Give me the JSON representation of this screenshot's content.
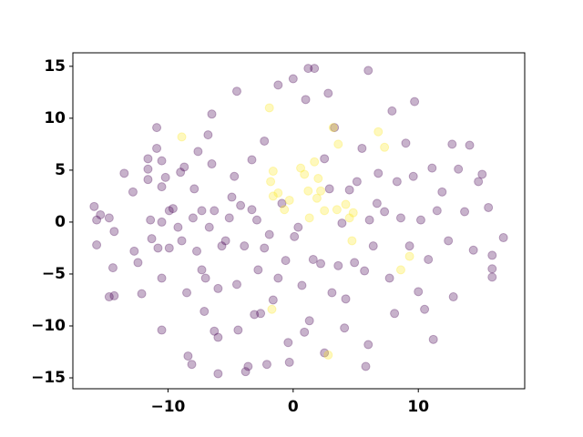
{
  "chart_data": {
    "type": "scatter",
    "alpha": 0.3,
    "xlim": [
      -17.6,
      18.5
    ],
    "ylim": [
      -16.05,
      16.3
    ],
    "xticks": [
      {
        "value": -10,
        "label": "−10"
      },
      0,
      10
    ],
    "yticks": [
      {
        "value": -15,
        "label": "−15"
      },
      {
        "value": -10,
        "label": "−10"
      },
      {
        "value": -5,
        "label": "−5"
      },
      0,
      5,
      10,
      15
    ],
    "series": [
      {
        "color": "#440154",
        "x": [
          -15.9,
          -15.4,
          -15.7,
          -14.7,
          -15.7,
          -14.3,
          -13.5,
          -14.4,
          -14.7,
          -14.3,
          -12.8,
          -12.7,
          -12.4,
          -12.1,
          -11.6,
          -11.6,
          -11.6,
          -11.4,
          -11.3,
          -10.9,
          -10.9,
          -10.8,
          -10.5,
          -10.5,
          -10.5,
          -10.5,
          -10.5,
          -10.2,
          -9.9,
          -9.9,
          -9.6,
          -9.2,
          -9.0,
          -8.9,
          -8.7,
          -8.5,
          -8.4,
          -8.1,
          -8.0,
          -7.9,
          -7.6,
          -7.7,
          -7.3,
          -7.3,
          -7.1,
          -6.8,
          -7.0,
          -6.7,
          -6.5,
          -6.5,
          -6.3,
          -6.3,
          -6.0,
          -6.0,
          -6.0,
          -5.7,
          -5.4,
          -5.1,
          -4.9,
          -4.7,
          -4.5,
          -4.5,
          -4.4,
          -4.2,
          -3.9,
          -3.8,
          -3.6,
          -3.3,
          -3.3,
          -3.1,
          -2.9,
          -2.8,
          -2.6,
          -2.3,
          -2.3,
          -2.1,
          -1.9,
          -1.6,
          -1.2,
          -1.2,
          -0.9,
          -0.6,
          -0.4,
          -0.3,
          0,
          0.1,
          0.4,
          0.7,
          0.9,
          1.0,
          1.2,
          1.3,
          1.6,
          1.7,
          2.2,
          2.5,
          2.5,
          2.8,
          2.9,
          3.1,
          3.3,
          3.6,
          3.9,
          4.1,
          4.2,
          4.5,
          4.9,
          5.1,
          5.5,
          5.7,
          5.8,
          6.0,
          6.1,
          6.4,
          6.7,
          6.8,
          7.3,
          7.7,
          7.9,
          8.1,
          8.3,
          8.6,
          9.0,
          9.3,
          9.6,
          9.7,
          10.0,
          10.2,
          10.5,
          10.8,
          11.1,
          11.2,
          11.5,
          11.9,
          12.4,
          12.7,
          12.8,
          13.2,
          13.7,
          14.1,
          14.4,
          14.8,
          15.1,
          15.6,
          15.9,
          15.9,
          16.8,
          15.9,
          6.0
        ],
        "y": [
          1.5,
          0.7,
          0.2,
          0.4,
          -2.2,
          -0.9,
          4.7,
          -4.4,
          -7.2,
          -7.1,
          2.9,
          -2.8,
          -3.9,
          -6.9,
          6.1,
          5.1,
          4.1,
          0.2,
          -1.6,
          9.1,
          7.1,
          -2.5,
          5.9,
          3.4,
          0,
          -5.4,
          -10.4,
          4.3,
          1.1,
          -2.5,
          1.3,
          -0.5,
          4.8,
          -1.8,
          5.3,
          -6.8,
          -12.9,
          -13.7,
          0.4,
          3.2,
          6.8,
          -2.8,
          1.1,
          -4.6,
          -8.6,
          8.4,
          -5.4,
          -0.5,
          5.6,
          10.4,
          1.1,
          -10.5,
          -14.6,
          -11.1,
          -6.4,
          -2.3,
          -1.8,
          0.4,
          2.4,
          4.4,
          12.6,
          -6.0,
          -10.4,
          1.6,
          -2.3,
          -14.4,
          -13.9,
          6.0,
          1.2,
          -8.9,
          0.2,
          -4.6,
          -8.8,
          7.8,
          -2.5,
          -13.7,
          -1.2,
          -7.5,
          13.2,
          -5.4,
          1.8,
          -3.7,
          -11.6,
          -13.5,
          13.8,
          -1.4,
          -0.5,
          -6.1,
          -10.6,
          11.8,
          14.8,
          -9.5,
          -3.6,
          14.8,
          -4.0,
          6.1,
          -12.6,
          12.4,
          3.2,
          -6.8,
          9.1,
          -4.2,
          -0.1,
          -10.2,
          -7.4,
          3.1,
          -3.9,
          3.9,
          7.1,
          -4.7,
          -13.9,
          -11.8,
          0.2,
          -2.3,
          1.8,
          4.7,
          1.0,
          -5.4,
          10.7,
          -8.8,
          3.9,
          0.4,
          7.6,
          -2.3,
          4.4,
          11.6,
          -6.7,
          0.2,
          -8.4,
          -3.6,
          5.2,
          -11.3,
          1.1,
          2.9,
          -1.8,
          7.5,
          -7.2,
          5.1,
          1.0,
          7.4,
          -2.7,
          3.9,
          4.6,
          1.4,
          -4.5,
          -5.3,
          -1.5,
          -3.2,
          14.6
        ]
      },
      {
        "color": "#fde725",
        "x": [
          -1.9,
          -1.6,
          -1.8,
          -1.6,
          -1.2,
          -0.7,
          -0.3,
          0.6,
          0.9,
          1.2,
          1.3,
          1.7,
          1.9,
          2.0,
          2.2,
          2.5,
          3.2,
          3.6,
          3.5,
          4.2,
          4.5,
          4.7,
          6.8,
          7.3,
          8.6,
          9.3,
          -1.7,
          4.8,
          -8.9,
          2.8
        ],
        "y": [
          11.0,
          4.9,
          3.9,
          2.5,
          2.8,
          1.2,
          2.1,
          5.2,
          4.6,
          3.0,
          0.4,
          5.8,
          2.3,
          4.2,
          3.0,
          1.1,
          9.1,
          7.5,
          1.2,
          1.7,
          0.4,
          -1.8,
          8.7,
          7.2,
          -4.6,
          -3.3,
          -8.4,
          0.9,
          8.2,
          -12.8
        ]
      }
    ]
  }
}
